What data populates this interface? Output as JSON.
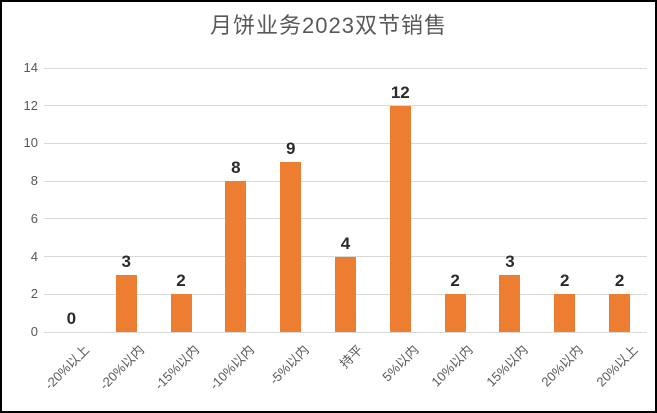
{
  "chart_data": {
    "type": "bar",
    "title": "月饼业务2023双节销售",
    "categories": [
      "-20%以上",
      "-20%以内",
      "-15%以内",
      "-10%以内",
      "-5%以内",
      "持平",
      "5%以内",
      "10%以内",
      "15%以内",
      "20%以内",
      "20%以上"
    ],
    "values": [
      0,
      3,
      2,
      8,
      9,
      4,
      12,
      2,
      3,
      2,
      2
    ],
    "data_labels": [
      0,
      3,
      2,
      8,
      9,
      4,
      12,
      2,
      3,
      2,
      2
    ],
    "xlabel": "",
    "ylabel": "",
    "ylim": [
      0,
      14
    ],
    "yticks": [
      0,
      2,
      4,
      6,
      8,
      10,
      12,
      14
    ],
    "grid": true,
    "legend_position": "none",
    "colors": {
      "bar": "#ED7D31",
      "axis_text": "#595959",
      "title_text": "#595959",
      "value_label_text": "#2B2B2B",
      "gridline": "#D9D9D9",
      "background": "#FFFFFF",
      "frame_border": "#000000"
    }
  }
}
